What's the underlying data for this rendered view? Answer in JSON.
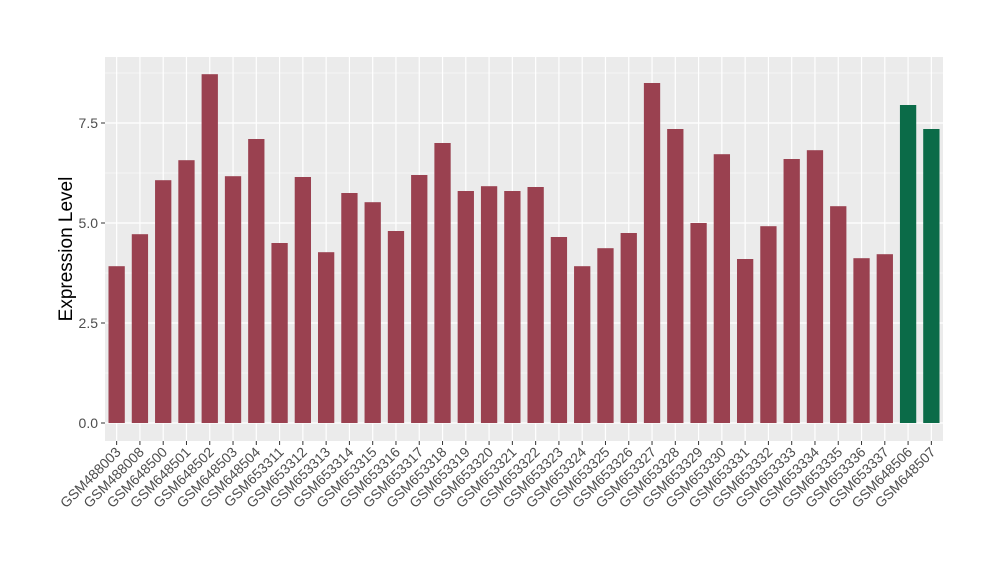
{
  "chart_data": {
    "type": "bar",
    "y_label": "Expression Level",
    "categories": [
      "GSM488003",
      "GSM488008",
      "GSM648500",
      "GSM648501",
      "GSM648502",
      "GSM648503",
      "GSM648504",
      "GSM653311",
      "GSM653312",
      "GSM653313",
      "GSM653314",
      "GSM653315",
      "GSM653316",
      "GSM653317",
      "GSM653318",
      "GSM653319",
      "GSM653320",
      "GSM653321",
      "GSM653322",
      "GSM653323",
      "GSM653324",
      "GSM653325",
      "GSM653326",
      "GSM653327",
      "GSM653328",
      "GSM653329",
      "GSM653330",
      "GSM653331",
      "GSM653332",
      "GSM653333",
      "GSM653334",
      "GSM653335",
      "GSM653336",
      "GSM653337",
      "GSM648506",
      "GSM648507"
    ],
    "values": [
      3.92,
      4.72,
      6.07,
      6.57,
      8.72,
      6.17,
      7.1,
      4.5,
      6.15,
      4.27,
      5.75,
      5.52,
      4.8,
      6.2,
      7.0,
      5.8,
      5.92,
      5.8,
      5.9,
      4.65,
      3.92,
      4.37,
      4.75,
      8.5,
      7.35,
      5.0,
      6.72,
      4.1,
      4.92,
      6.6,
      6.82,
      5.42,
      4.12,
      4.22,
      7.95,
      7.35
    ],
    "colors": [
      "#9a4150",
      "#9a4150",
      "#9a4150",
      "#9a4150",
      "#9a4150",
      "#9a4150",
      "#9a4150",
      "#9a4150",
      "#9a4150",
      "#9a4150",
      "#9a4150",
      "#9a4150",
      "#9a4150",
      "#9a4150",
      "#9a4150",
      "#9a4150",
      "#9a4150",
      "#9a4150",
      "#9a4150",
      "#9a4150",
      "#9a4150",
      "#9a4150",
      "#9a4150",
      "#9a4150",
      "#9a4150",
      "#9a4150",
      "#9a4150",
      "#9a4150",
      "#9a4150",
      "#9a4150",
      "#9a4150",
      "#9a4150",
      "#9a4150",
      "#9a4150",
      "#0b6b48",
      "#0b6b48"
    ],
    "ylim": [
      -0.45,
      9.15
    ],
    "yticks": [
      {
        "value": 0,
        "label": "0.0"
      },
      2.5,
      {
        "value": 5,
        "label": "5.0"
      },
      7.5
    ],
    "grid": true
  }
}
